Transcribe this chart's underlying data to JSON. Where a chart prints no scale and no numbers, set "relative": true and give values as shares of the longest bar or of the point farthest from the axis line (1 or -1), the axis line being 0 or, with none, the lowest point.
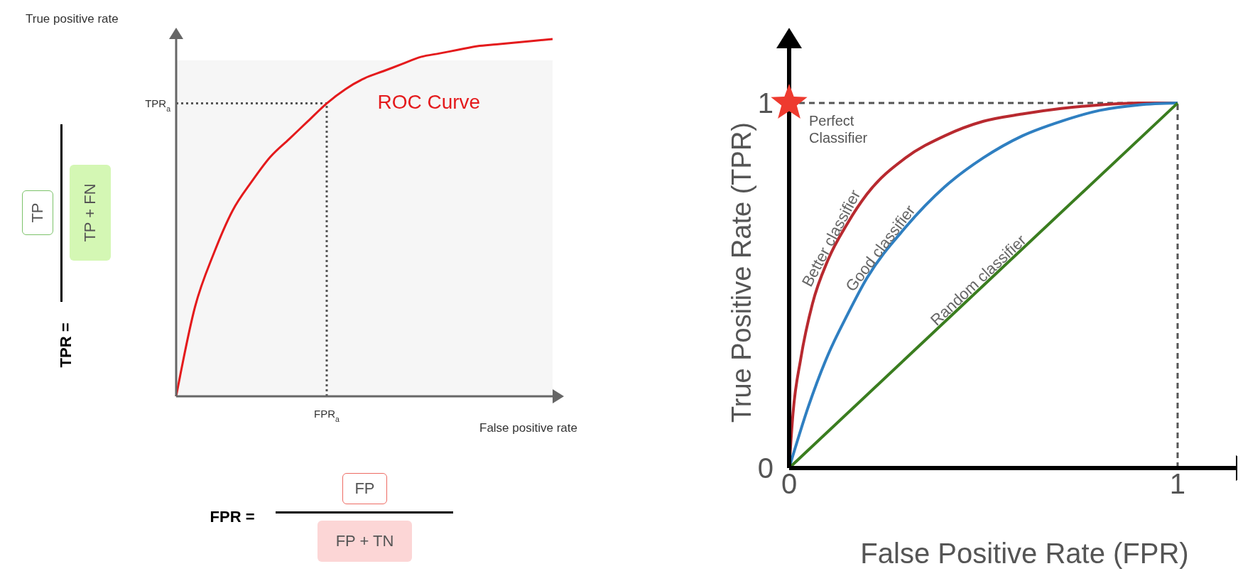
{
  "chart_data": [
    {
      "type": "line",
      "xlabel": "False positive rate",
      "ylabel": "True positive rate",
      "relative": true,
      "categories": [
        null,
        null,
        null,
        null,
        null,
        null,
        null,
        null,
        null,
        null,
        null,
        null,
        null,
        null,
        null,
        null,
        null,
        null,
        null,
        null,
        null
      ],
      "series": [
        {
          "name": "ROC Curve",
          "color": "#e41a1c",
          "values": [
            0,
            0.25,
            0.4,
            0.52,
            0.6,
            0.67,
            0.72,
            0.77,
            0.82,
            0.86,
            0.89,
            0.91,
            0.93,
            0.95,
            0.96,
            0.97,
            0.98,
            0.985,
            0.99,
            0.995,
            1
          ]
        }
      ],
      "ref_lines": [
        {
          "axis": "y",
          "value": 0.82,
          "label": "TPR$_{a}$",
          "color": "#555555",
          "line_style": "dotted"
        }
      ],
      "annotations": [
        "TPR =",
        "TP",
        "TP + FN",
        "FPR =",
        "FP",
        "FP + TN",
        "FPR$_{a}$"
      ]
    },
    {
      "type": "line",
      "xlabel": "False Positive Rate (FPR)",
      "ylabel": "True Positive Rate (TPR)",
      "xlim": [
        0,
        1.15
      ],
      "ylim": [
        0,
        1.15
      ],
      "xticks": [
        0,
        1
      ],
      "yticks": [
        0,
        1
      ],
      "series": [
        {
          "name": "Better classifier",
          "color": "#b8292f",
          "x": [
            0,
            0.01,
            0.03,
            0.06,
            0.1,
            0.15,
            0.2,
            0.3,
            0.4,
            0.5,
            0.6,
            0.7,
            0.8,
            0.9,
            1
          ],
          "values": [
            0,
            0.15,
            0.3,
            0.45,
            0.57,
            0.67,
            0.75,
            0.85,
            0.91,
            0.95,
            0.97,
            0.985,
            0.995,
            1,
            1
          ]
        },
        {
          "name": "Good classifier",
          "color": "#2f7fc1",
          "x": [
            0,
            0.05,
            0.1,
            0.15,
            0.2,
            0.3,
            0.4,
            0.5,
            0.6,
            0.7,
            0.8,
            0.9,
            1
          ],
          "values": [
            0,
            0.17,
            0.31,
            0.42,
            0.52,
            0.66,
            0.77,
            0.85,
            0.91,
            0.95,
            0.98,
            0.995,
            1
          ]
        },
        {
          "name": "Random classifier",
          "color": "#3a7d1f",
          "x": [
            0,
            1
          ],
          "values": [
            0,
            1
          ]
        },
        {
          "name": "Perfect Classifier",
          "type": "scatter",
          "marker": "star",
          "color": "#ee3a2f",
          "x": [
            0
          ],
          "values": [
            1
          ]
        }
      ],
      "ref_lines": [
        {
          "axis": "y",
          "value": 1,
          "color": "#555555",
          "line_style": "dashed"
        },
        {
          "axis": "x",
          "value": 1,
          "color": "#555555",
          "line_style": "dashed"
        }
      ]
    }
  ]
}
